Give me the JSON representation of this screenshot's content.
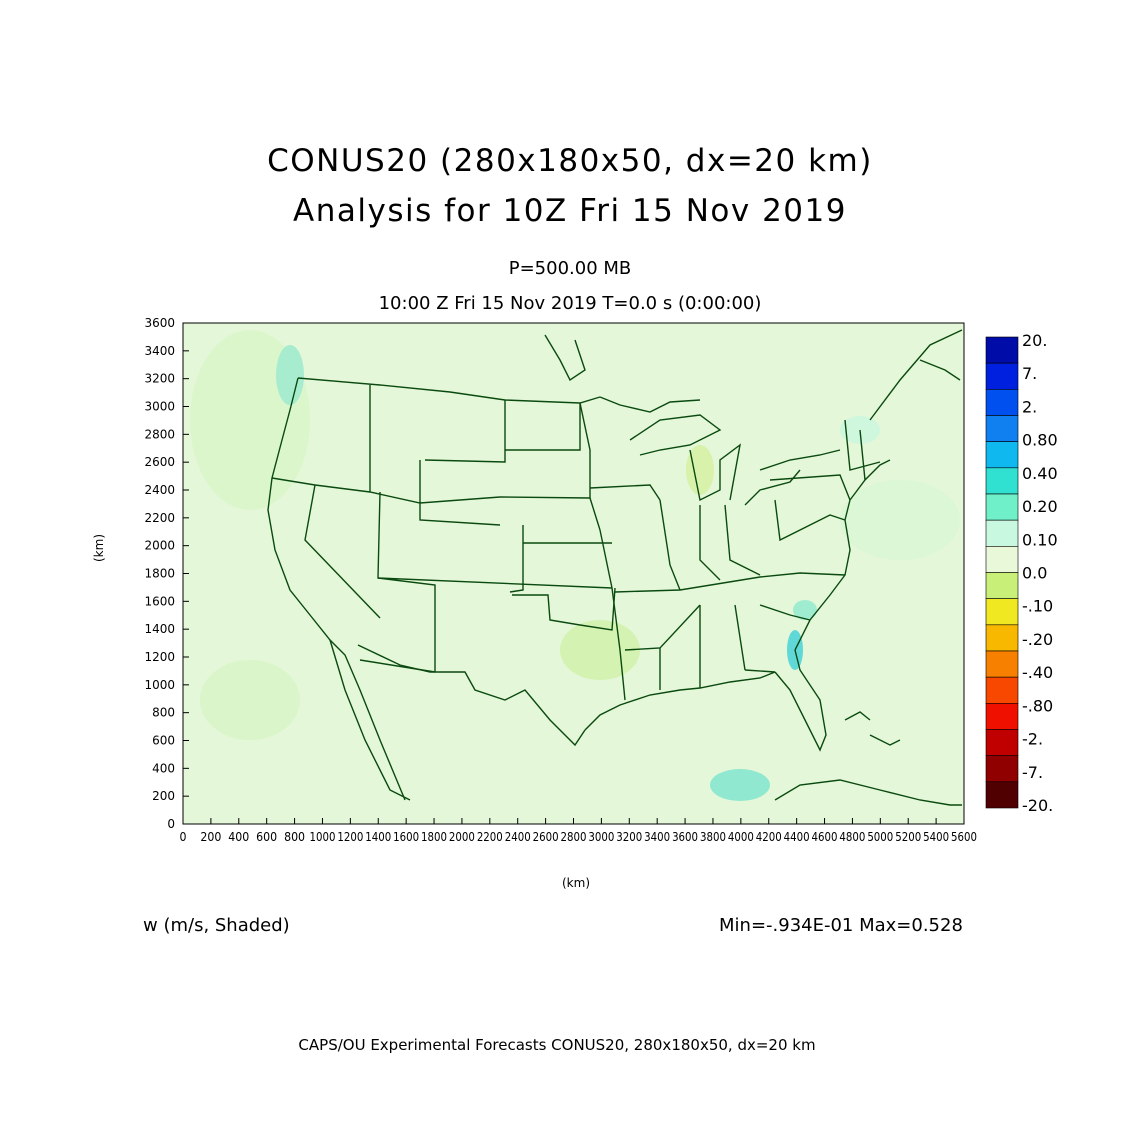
{
  "header": {
    "title_line1": "CONUS20 (280x180x50, dx=20 km)",
    "title_line2": "Analysis for 10Z Fri 15 Nov 2019",
    "level": "P=500.00 MB",
    "valid_time": "10:00 Z Fri 15 Nov 2019    T=0.0 s (0:00:00)"
  },
  "axes": {
    "x_label": "(km)",
    "y_label": "(km)",
    "x_ticks": [
      "0",
      "200",
      "400",
      "600",
      "800",
      "1000",
      "1200",
      "1400",
      "1600",
      "1800",
      "2000",
      "2200",
      "2400",
      "2600",
      "2800",
      "3000",
      "3200",
      "3400",
      "3600",
      "3800",
      "4000",
      "4200",
      "4400",
      "4600",
      "4800",
      "5000",
      "5200",
      "5400",
      "5600"
    ],
    "y_ticks": [
      "0",
      "200",
      "400",
      "600",
      "800",
      "1000",
      "1200",
      "1400",
      "1600",
      "1800",
      "2000",
      "2200",
      "2400",
      "2600",
      "2800",
      "3000",
      "3200",
      "3400",
      "3600"
    ],
    "x_range": [
      0,
      5600
    ],
    "y_range": [
      0,
      3600
    ]
  },
  "colorbar": {
    "labels": [
      "20.",
      "7.",
      "2.",
      "0.80",
      "0.40",
      "0.20",
      "0.10",
      "0.0",
      "-.10",
      "-.20",
      "-.40",
      "-.80",
      "-2.",
      "-7.",
      "-20."
    ],
    "colors": [
      "#000ca8",
      "#0020e0",
      "#0050f0",
      "#1080f0",
      "#10b8f0",
      "#30e0d0",
      "#70f0c8",
      "#c8f8e0",
      "#e8f8d8",
      "#c8f078",
      "#f0e820",
      "#f8b800",
      "#f88000",
      "#f84800",
      "#f01000",
      "#c00000",
      "#900000",
      "#500000"
    ]
  },
  "map": {
    "background_color": "#e4f7d8",
    "line_color": "#0a4a10",
    "features": [
      "coastlines",
      "state boundaries",
      "great lakes"
    ]
  },
  "field": {
    "variable_label": "w (m/s, Shaded)",
    "min_max": "Min=-.934E-01 Max=0.528"
  },
  "footer": {
    "credit": "CAPS/OU Experimental Forecasts  CONUS20, 280x180x50, dx=20 km"
  }
}
